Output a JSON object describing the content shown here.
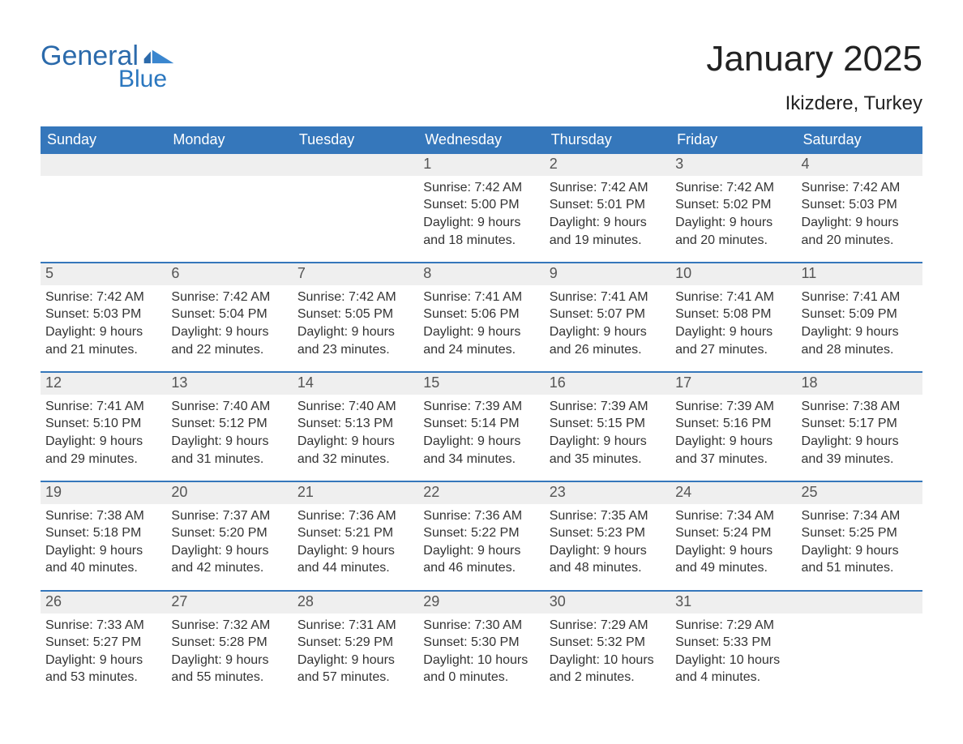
{
  "brand": {
    "word1": "General",
    "word2": "Blue"
  },
  "title": "January 2025",
  "location": "Ikizdere, Turkey",
  "colors": {
    "header_bg": "#3577bb",
    "header_text": "#ffffff",
    "row_border": "#3577bb",
    "daynum_bg": "#efefef",
    "daynum_text": "#555555",
    "body_text": "#333333",
    "brand_primary": "#2b6aab",
    "brand_secondary": "#2b77bf",
    "page_bg": "#ffffff"
  },
  "weekdays": [
    "Sunday",
    "Monday",
    "Tuesday",
    "Wednesday",
    "Thursday",
    "Friday",
    "Saturday"
  ],
  "weeks": [
    [
      null,
      null,
      null,
      {
        "n": "1",
        "sunrise": "Sunrise: 7:42 AM",
        "sunset": "Sunset: 5:00 PM",
        "d1": "Daylight: 9 hours",
        "d2": "and 18 minutes."
      },
      {
        "n": "2",
        "sunrise": "Sunrise: 7:42 AM",
        "sunset": "Sunset: 5:01 PM",
        "d1": "Daylight: 9 hours",
        "d2": "and 19 minutes."
      },
      {
        "n": "3",
        "sunrise": "Sunrise: 7:42 AM",
        "sunset": "Sunset: 5:02 PM",
        "d1": "Daylight: 9 hours",
        "d2": "and 20 minutes."
      },
      {
        "n": "4",
        "sunrise": "Sunrise: 7:42 AM",
        "sunset": "Sunset: 5:03 PM",
        "d1": "Daylight: 9 hours",
        "d2": "and 20 minutes."
      }
    ],
    [
      {
        "n": "5",
        "sunrise": "Sunrise: 7:42 AM",
        "sunset": "Sunset: 5:03 PM",
        "d1": "Daylight: 9 hours",
        "d2": "and 21 minutes."
      },
      {
        "n": "6",
        "sunrise": "Sunrise: 7:42 AM",
        "sunset": "Sunset: 5:04 PM",
        "d1": "Daylight: 9 hours",
        "d2": "and 22 minutes."
      },
      {
        "n": "7",
        "sunrise": "Sunrise: 7:42 AM",
        "sunset": "Sunset: 5:05 PM",
        "d1": "Daylight: 9 hours",
        "d2": "and 23 minutes."
      },
      {
        "n": "8",
        "sunrise": "Sunrise: 7:41 AM",
        "sunset": "Sunset: 5:06 PM",
        "d1": "Daylight: 9 hours",
        "d2": "and 24 minutes."
      },
      {
        "n": "9",
        "sunrise": "Sunrise: 7:41 AM",
        "sunset": "Sunset: 5:07 PM",
        "d1": "Daylight: 9 hours",
        "d2": "and 26 minutes."
      },
      {
        "n": "10",
        "sunrise": "Sunrise: 7:41 AM",
        "sunset": "Sunset: 5:08 PM",
        "d1": "Daylight: 9 hours",
        "d2": "and 27 minutes."
      },
      {
        "n": "11",
        "sunrise": "Sunrise: 7:41 AM",
        "sunset": "Sunset: 5:09 PM",
        "d1": "Daylight: 9 hours",
        "d2": "and 28 minutes."
      }
    ],
    [
      {
        "n": "12",
        "sunrise": "Sunrise: 7:41 AM",
        "sunset": "Sunset: 5:10 PM",
        "d1": "Daylight: 9 hours",
        "d2": "and 29 minutes."
      },
      {
        "n": "13",
        "sunrise": "Sunrise: 7:40 AM",
        "sunset": "Sunset: 5:12 PM",
        "d1": "Daylight: 9 hours",
        "d2": "and 31 minutes."
      },
      {
        "n": "14",
        "sunrise": "Sunrise: 7:40 AM",
        "sunset": "Sunset: 5:13 PM",
        "d1": "Daylight: 9 hours",
        "d2": "and 32 minutes."
      },
      {
        "n": "15",
        "sunrise": "Sunrise: 7:39 AM",
        "sunset": "Sunset: 5:14 PM",
        "d1": "Daylight: 9 hours",
        "d2": "and 34 minutes."
      },
      {
        "n": "16",
        "sunrise": "Sunrise: 7:39 AM",
        "sunset": "Sunset: 5:15 PM",
        "d1": "Daylight: 9 hours",
        "d2": "and 35 minutes."
      },
      {
        "n": "17",
        "sunrise": "Sunrise: 7:39 AM",
        "sunset": "Sunset: 5:16 PM",
        "d1": "Daylight: 9 hours",
        "d2": "and 37 minutes."
      },
      {
        "n": "18",
        "sunrise": "Sunrise: 7:38 AM",
        "sunset": "Sunset: 5:17 PM",
        "d1": "Daylight: 9 hours",
        "d2": "and 39 minutes."
      }
    ],
    [
      {
        "n": "19",
        "sunrise": "Sunrise: 7:38 AM",
        "sunset": "Sunset: 5:18 PM",
        "d1": "Daylight: 9 hours",
        "d2": "and 40 minutes."
      },
      {
        "n": "20",
        "sunrise": "Sunrise: 7:37 AM",
        "sunset": "Sunset: 5:20 PM",
        "d1": "Daylight: 9 hours",
        "d2": "and 42 minutes."
      },
      {
        "n": "21",
        "sunrise": "Sunrise: 7:36 AM",
        "sunset": "Sunset: 5:21 PM",
        "d1": "Daylight: 9 hours",
        "d2": "and 44 minutes."
      },
      {
        "n": "22",
        "sunrise": "Sunrise: 7:36 AM",
        "sunset": "Sunset: 5:22 PM",
        "d1": "Daylight: 9 hours",
        "d2": "and 46 minutes."
      },
      {
        "n": "23",
        "sunrise": "Sunrise: 7:35 AM",
        "sunset": "Sunset: 5:23 PM",
        "d1": "Daylight: 9 hours",
        "d2": "and 48 minutes."
      },
      {
        "n": "24",
        "sunrise": "Sunrise: 7:34 AM",
        "sunset": "Sunset: 5:24 PM",
        "d1": "Daylight: 9 hours",
        "d2": "and 49 minutes."
      },
      {
        "n": "25",
        "sunrise": "Sunrise: 7:34 AM",
        "sunset": "Sunset: 5:25 PM",
        "d1": "Daylight: 9 hours",
        "d2": "and 51 minutes."
      }
    ],
    [
      {
        "n": "26",
        "sunrise": "Sunrise: 7:33 AM",
        "sunset": "Sunset: 5:27 PM",
        "d1": "Daylight: 9 hours",
        "d2": "and 53 minutes."
      },
      {
        "n": "27",
        "sunrise": "Sunrise: 7:32 AM",
        "sunset": "Sunset: 5:28 PM",
        "d1": "Daylight: 9 hours",
        "d2": "and 55 minutes."
      },
      {
        "n": "28",
        "sunrise": "Sunrise: 7:31 AM",
        "sunset": "Sunset: 5:29 PM",
        "d1": "Daylight: 9 hours",
        "d2": "and 57 minutes."
      },
      {
        "n": "29",
        "sunrise": "Sunrise: 7:30 AM",
        "sunset": "Sunset: 5:30 PM",
        "d1": "Daylight: 10 hours",
        "d2": "and 0 minutes."
      },
      {
        "n": "30",
        "sunrise": "Sunrise: 7:29 AM",
        "sunset": "Sunset: 5:32 PM",
        "d1": "Daylight: 10 hours",
        "d2": "and 2 minutes."
      },
      {
        "n": "31",
        "sunrise": "Sunrise: 7:29 AM",
        "sunset": "Sunset: 5:33 PM",
        "d1": "Daylight: 10 hours",
        "d2": "and 4 minutes."
      },
      null
    ]
  ]
}
